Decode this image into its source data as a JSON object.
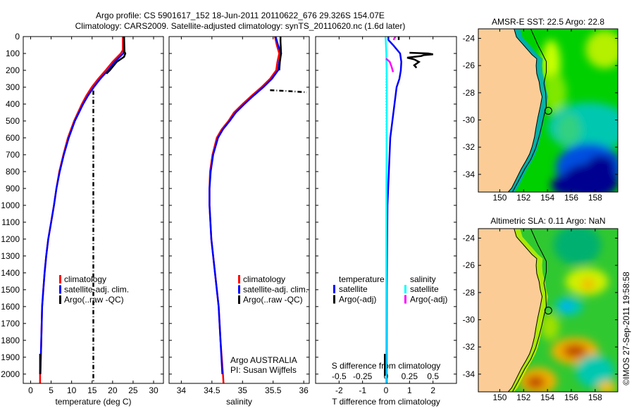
{
  "title": {
    "line1": "Argo profile: CS 5901617_152 18-Jun-2011 20110622_676 29.326S 154.07E",
    "line2": "Climatology: CARS2009. Satellite-adjusted climatology: synTS_20110620.nc (1.6d later)"
  },
  "footer_stamp": "©IMOS 27-Sep-2011 19:58:58",
  "colors": {
    "climatology": "#ff0000",
    "satellite": "#0000ff",
    "argo": "#000000",
    "sal_satellite": "#00ffff",
    "sal_argo": "#ff00ff",
    "land": "#fccc96"
  },
  "chart_data": [
    {
      "type": "line",
      "id": "temperature",
      "xlabel": "temperature (deg C)",
      "ylabel": "",
      "xlim": [
        -1.8,
        32.4
      ],
      "ylim": [
        0,
        2055
      ],
      "y_reversed": true,
      "xticks": [
        0,
        5,
        10,
        15,
        20,
        25,
        30
      ],
      "xtick_labels": [
        "0",
        "5",
        "10",
        "15",
        "20",
        "25",
        "30"
      ],
      "yticks": [
        0,
        100,
        200,
        300,
        400,
        500,
        600,
        700,
        800,
        900,
        1000,
        1100,
        1200,
        1300,
        1400,
        1500,
        1600,
        1700,
        1800,
        1900,
        2000
      ],
      "ytick_labels": [
        "0",
        "100",
        "200",
        "300",
        "400",
        "500",
        "600",
        "700",
        "800",
        "900",
        "1000",
        "1100",
        "1200",
        "1300",
        "1400",
        "1500",
        "1600",
        "1700",
        "1800",
        "1900",
        "2000"
      ],
      "legend": [
        "climatology",
        "satellite-adj. clim.",
        "Argo(..raw -QC)"
      ],
      "series": [
        {
          "name": "climatology",
          "color": "#ff0000",
          "depth": [
            0,
            80,
            100,
            150,
            200,
            250,
            300,
            350,
            400,
            500,
            600,
            700,
            800,
            900,
            1000,
            1100,
            1200,
            1300,
            1400,
            1500,
            1600,
            1700,
            1800,
            1900,
            2000,
            2055
          ],
          "values": [
            22.5,
            22.5,
            22,
            20,
            18.3,
            16.5,
            14.9,
            13.6,
            12.5,
            10.6,
            9.1,
            8.0,
            7.0,
            6.3,
            5.7,
            5.0,
            4.3,
            3.8,
            3.4,
            3.1,
            2.8,
            2.7,
            2.6,
            2.5,
            2.3,
            2.3
          ]
        },
        {
          "name": "satellite-adj. clim.",
          "color": "#0000ff",
          "depth": [
            0,
            80,
            100,
            150,
            200,
            250,
            300,
            350,
            400,
            500,
            600,
            700,
            800,
            900,
            1000,
            1100,
            1200,
            1300,
            1400,
            1500,
            1600,
            1700,
            1800,
            1900,
            2000
          ],
          "values": [
            22.8,
            22.8,
            22.6,
            20.5,
            18.9,
            17,
            15.4,
            14,
            12.8,
            10.8,
            9.3,
            8.1,
            7.1,
            6.3,
            5.7,
            5.0,
            4.3,
            3.8,
            3.4,
            3.1,
            2.8,
            2.7,
            2.6,
            2.5,
            2.4
          ]
        },
        {
          "name": "Argo(..raw -QC)",
          "color": "#000000",
          "depth": [
            0,
            90,
            100,
            120,
            150,
            200,
            220
          ],
          "values": [
            22.8,
            22.9,
            23.1,
            22.8,
            21,
            19.3,
            18.5
          ]
        },
        {
          "name": "Argo bad (QC)",
          "color": "#000000",
          "dashed": true,
          "depth": [
            320,
            2055
          ],
          "values": [
            15.3,
            15.3
          ]
        },
        {
          "name": "Argo deep",
          "color": "#000000",
          "depth": [
            1880,
            2000
          ],
          "values": [
            2.3,
            2.3
          ]
        }
      ]
    },
    {
      "type": "line",
      "id": "salinity",
      "xlabel": "salinity",
      "xlim": [
        33.8,
        36.09
      ],
      "ylim": [
        0,
        2055
      ],
      "y_reversed": true,
      "xticks": [
        34,
        34.5,
        35,
        35.5,
        36
      ],
      "xtick_labels": [
        "34",
        "34.5",
        "35",
        "35.5",
        "36"
      ],
      "legend": [
        "climatology",
        "satellite-adj. clim.",
        "Argo(..raw -QC)"
      ],
      "annotation": [
        "Argo AUSTRALIA",
        "PI: Susan Wijffels"
      ],
      "series": [
        {
          "name": "climatology",
          "color": "#ff0000",
          "depth": [
            0,
            50,
            100,
            150,
            200,
            250,
            300,
            350,
            400,
            450,
            500,
            550,
            600,
            700,
            800,
            900,
            1000,
            1200,
            1400,
            1600,
            1800,
            2000,
            2055
          ],
          "values": [
            35.53,
            35.56,
            35.6,
            35.57,
            35.55,
            35.45,
            35.31,
            35.15,
            35.0,
            34.86,
            34.77,
            34.66,
            34.58,
            34.51,
            34.47,
            34.46,
            34.46,
            34.49,
            34.55,
            34.61,
            34.64,
            34.68,
            34.69
          ]
        },
        {
          "name": "satellite-adj. clim.",
          "color": "#0000ff",
          "depth": [
            0,
            50,
            100,
            150,
            200,
            250,
            300,
            350,
            400,
            450,
            500,
            550,
            600,
            700,
            800,
            900,
            1000,
            1200,
            1400,
            1600,
            1800,
            2000
          ],
          "values": [
            35.54,
            35.58,
            35.63,
            35.6,
            35.58,
            35.48,
            35.34,
            35.18,
            35.03,
            34.89,
            34.79,
            34.68,
            34.6,
            34.52,
            34.48,
            34.46,
            34.46,
            34.49,
            34.55,
            34.61,
            34.64,
            34.67
          ]
        },
        {
          "name": "Argo(..raw -QC)",
          "color": "#000000",
          "depth": [
            0,
            30,
            100,
            150,
            200
          ],
          "values": [
            35.62,
            35.62,
            35.63,
            35.61,
            35.6
          ]
        },
        {
          "name": "Argo bad (QC)",
          "color": "#000000",
          "dashed": true,
          "depth": [
            318,
            322,
            330
          ],
          "values": [
            35.45,
            35.7,
            36.05
          ]
        }
      ]
    },
    {
      "type": "line",
      "id": "difference",
      "xlabel": "T difference from climatology",
      "xlabel_top": "S difference from climatology",
      "xlim": [
        -3,
        3
      ],
      "ylim": [
        0,
        2055
      ],
      "y_reversed": true,
      "xticks": [
        -2,
        -1,
        0,
        1,
        2
      ],
      "xtick_labels": [
        "-2",
        "-1",
        "0",
        "1",
        "2"
      ],
      "s_ticks": [
        -0.5,
        -0.25,
        0,
        0.25,
        0.5
      ],
      "s_tick_labels": [
        "-0.5",
        "-0.25",
        "0",
        "0.25",
        "0.5"
      ],
      "s_scale_factor": 4,
      "legend_headers": [
        "temperature",
        "salinity"
      ],
      "legend": [
        "satellite",
        "Argo(-adj)",
        "satellite",
        "Argo(-adj)"
      ],
      "series": [
        {
          "name": "T satellite",
          "color": "#0000ff",
          "depth": [
            0,
            20,
            50,
            100,
            150,
            200,
            250,
            300,
            400,
            500,
            600,
            800,
            1000,
            1500,
            2000,
            2055
          ],
          "values": [
            0.1,
            0.1,
            0.3,
            0.6,
            0.65,
            0.63,
            0.57,
            0.45,
            0.36,
            0.27,
            0.18,
            0.12,
            0.06,
            0.03,
            0.02,
            0.02
          ]
        },
        {
          "name": "S satellite",
          "color": "#00ffff",
          "sal": true,
          "depth": [
            0,
            100,
            300,
            600,
            1000,
            1500,
            2055
          ],
          "values": [
            -0.005,
            0.003,
            0.008,
            0.006,
            0.004,
            0.002,
            0.0
          ]
        },
        {
          "name": "T Argo(-adj)",
          "color": "#000000",
          "depth": [
            0,
            20
          ],
          "values": [
            0.54,
            0.54
          ]
        },
        {
          "name": "T Argo(-adj) 2",
          "color": "#000000",
          "depth": [
            96,
            100,
            105,
            110,
            115,
            125,
            135,
            150,
            170,
            185
          ],
          "values": [
            1.0,
            1.8,
            2.0,
            1.6,
            1.5,
            0.9,
            1.2,
            1.4,
            1.2,
            1.3
          ]
        },
        {
          "name": "T Argo(-adj) deep",
          "color": "#000000",
          "depth": [
            1880,
            2010
          ],
          "values": [
            -0.05,
            -0.05
          ]
        },
        {
          "name": "S Argo(-adj)",
          "color": "#ff00ff",
          "sal": true,
          "depth": [
            0,
            20
          ],
          "values": [
            0.1,
            0.08
          ]
        },
        {
          "name": "S Argo(-adj) 2",
          "color": "#ff00ff",
          "sal": true,
          "depth": [
            130,
            150,
            180,
            210
          ],
          "values": [
            0.0,
            0.04,
            0.06,
            0.075
          ]
        }
      ]
    },
    {
      "type": "heatmap",
      "id": "sst-map",
      "title": "AMSR-E SST: 22.5 Argo: 22.8",
      "xlim": [
        148.2,
        159.9
      ],
      "ylim": [
        -35.3,
        -23.3
      ],
      "xticks": [
        150,
        152,
        154,
        156,
        158
      ],
      "xtick_labels": [
        "150",
        "152",
        "154",
        "156",
        "158"
      ],
      "yticks": [
        -24,
        -26,
        -28,
        -30,
        -32,
        -34
      ],
      "ytick_labels": [
        "-24",
        "-26",
        "-28",
        "-30",
        "-32",
        "-34"
      ],
      "argo_position": [
        154.07,
        -29.326
      ]
    },
    {
      "type": "heatmap",
      "id": "sla-map",
      "title": "Altimetric SLA: 0.11 Argo: NaN",
      "xlim": [
        148.2,
        159.9
      ],
      "ylim": [
        -35.3,
        -23.3
      ],
      "xticks": [
        150,
        152,
        154,
        156,
        158
      ],
      "xtick_labels": [
        "150",
        "152",
        "154",
        "156",
        "158"
      ],
      "yticks": [
        -24,
        -26,
        -28,
        -30,
        -32,
        -34
      ],
      "ytick_labels": [
        "-24",
        "-26",
        "-28",
        "-30",
        "-32",
        "-34"
      ],
      "argo_position": [
        154.07,
        -29.326
      ]
    }
  ]
}
